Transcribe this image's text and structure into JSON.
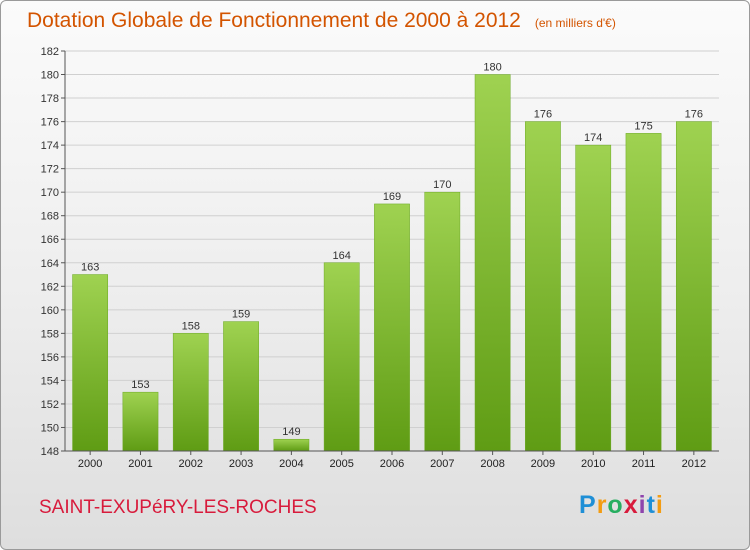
{
  "header": {
    "title": "Dotation Globale de Fonctionnement de 2000 à 2012",
    "subtitle": "(en milliers d'€)"
  },
  "footer": {
    "commune": "SAINT-EXUPéRY-LES-ROCHES",
    "logo": "Proxiti",
    "logo_letters": [
      {
        "ch": "P",
        "color": "#1f8fd6"
      },
      {
        "ch": "r",
        "color": "#f39c12"
      },
      {
        "ch": "o",
        "color": "#27ae60"
      },
      {
        "ch": "x",
        "color": "#d81b3c"
      },
      {
        "ch": "i",
        "color": "#8e44ad"
      },
      {
        "ch": "t",
        "color": "#1f8fd6"
      },
      {
        "ch": "i",
        "color": "#f39c12"
      }
    ]
  },
  "colors": {
    "bar_light": "#9fd251",
    "bar_dark": "#5f9c14",
    "grid": "#d0d0d0",
    "axis": "#555555"
  },
  "chart_data": {
    "type": "bar",
    "categories": [
      "2000",
      "2001",
      "2002",
      "2003",
      "2004",
      "2005",
      "2006",
      "2007",
      "2008",
      "2009",
      "2010",
      "2011",
      "2012"
    ],
    "values": [
      163,
      153,
      158,
      159,
      149,
      164,
      169,
      170,
      180,
      176,
      174,
      175,
      176
    ],
    "title": "Dotation Globale de Fonctionnement de 2000 à 2012",
    "subtitle": "(en milliers d'€)",
    "xlabel": "",
    "ylabel": "",
    "ylim": [
      148,
      182
    ],
    "yticks": [
      148,
      150,
      152,
      154,
      156,
      158,
      160,
      162,
      164,
      166,
      168,
      170,
      172,
      174,
      176,
      178,
      180,
      182
    ],
    "grid": true,
    "data_labels": true
  }
}
